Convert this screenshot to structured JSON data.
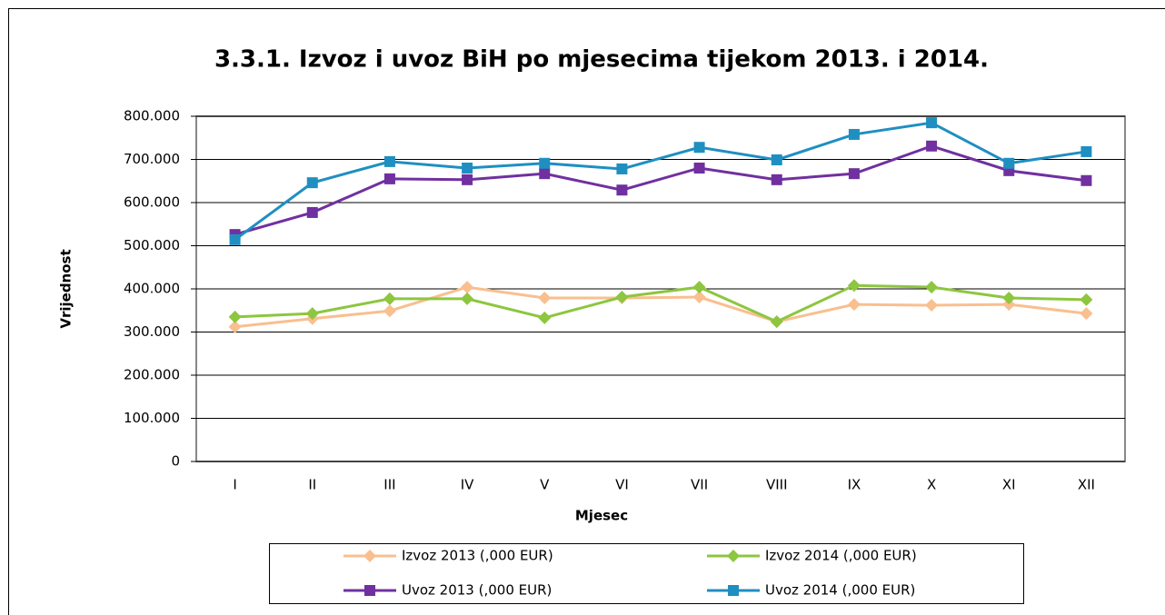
{
  "chart_data": {
    "type": "line",
    "title": "3.3.1. Izvoz i uvoz BiH po mjesecima tijekom 2013. i 2014.",
    "x_label": "Mjesec",
    "y_label": "Vrijednost",
    "categories": [
      "I",
      "II",
      "III",
      "IV",
      "V",
      "VI",
      "VII",
      "VIII",
      "IX",
      "X",
      "XI",
      "XII"
    ],
    "series": [
      {
        "name": "Izvoz 2013 (,000 EUR)",
        "color": "#f9bf8f",
        "marker": "diamond",
        "values": [
          312000,
          331000,
          349000,
          404000,
          379000,
          379000,
          381000,
          324000,
          364000,
          362000,
          364000,
          343000
        ]
      },
      {
        "name": "Izvoz 2014 (,000 EUR)",
        "color": "#8dc63f",
        "marker": "diamond",
        "values": [
          335000,
          343000,
          377000,
          377000,
          333000,
          381000,
          404000,
          324000,
          408000,
          404000,
          379000,
          375000
        ]
      },
      {
        "name": "Uvoz 2013 (,000 EUR)",
        "color": "#7030a0",
        "marker": "square",
        "values": [
          526000,
          577000,
          655000,
          653000,
          667000,
          629000,
          680000,
          653000,
          667000,
          731000,
          674000,
          651000
        ]
      },
      {
        "name": "Uvoz 2014 (,000 EUR)",
        "color": "#1f8fc1",
        "marker": "square",
        "values": [
          514000,
          646000,
          695000,
          680000,
          691000,
          678000,
          728000,
          699000,
          758000,
          785000,
          691000,
          718000
        ]
      }
    ],
    "ylim": [
      0,
      800000
    ],
    "yticks": [
      0,
      {
        "value": 100000,
        "label": "100.000"
      },
      {
        "value": 200000,
        "label": "200.000"
      },
      {
        "value": 300000,
        "label": "300.000"
      },
      {
        "value": 400000,
        "label": "400.000"
      },
      {
        "value": 500000,
        "label": "500.000"
      },
      {
        "value": 600000,
        "label": "600.000"
      },
      {
        "value": 700000,
        "label": "700.000"
      },
      {
        "value": 800000,
        "label": "800.000"
      }
    ],
    "grid": true,
    "legend": "bottom"
  }
}
